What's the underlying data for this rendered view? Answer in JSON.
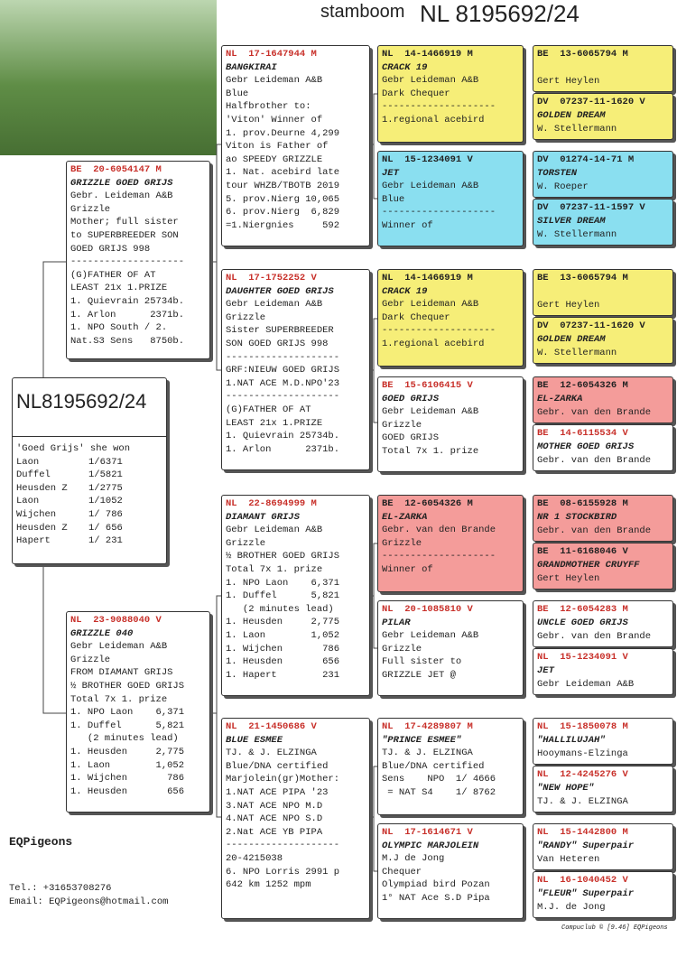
{
  "header": {
    "prefix": "stamboom",
    "title": "NL 8195692/24"
  },
  "subject": {
    "ring": "NL8195692/24",
    "intro": "'Goed Grijs' she won",
    "results": [
      [
        "Laon",
        "1/6371"
      ],
      [
        "Duffel",
        "1/5821"
      ],
      [
        "Heusden Z",
        "1/2775"
      ],
      [
        "Laon",
        "1/1052"
      ],
      [
        "Wijchen",
        "1/ 786"
      ],
      [
        "Heusden Z",
        "1/ 656"
      ],
      [
        "Hapert",
        "1/ 231"
      ]
    ]
  },
  "parents": [
    {
      "ring": "BE  20-6054147 M",
      "name": "GRIZZLE GOED GRIJS",
      "lines": [
        "Gebr. Leideman A&B",
        "Grizzle",
        "Mother; full sister",
        "to SUPERBREEDER SON",
        "GOED GRIJS 998",
        "--------------------",
        "(G)FATHER OF AT",
        "LEAST 21x 1.PRIZE",
        "1. Quievrain 25734b.",
        "1. Arlon      2371b.",
        "1. NPO South / 2.",
        "Nat.S3 Sens   8750b."
      ]
    },
    {
      "ring": "NL  23-9088040 V",
      "name": "GRIZZLE 040",
      "lines": [
        "Gebr Leideman A&B",
        "Grizzle",
        "FROM DIAMANT GRIJS",
        "½ BROTHER GOED GRIJS",
        "Total 7x 1. prize",
        "1. NPO Laon    6,371",
        "1. Duffel      5,821",
        "   (2 minutes lead)",
        "1. Heusden     2,775",
        "1. Laon        1,052",
        "1. Wijchen       786",
        "1. Heusden       656"
      ]
    }
  ],
  "grandparents": [
    {
      "ring": "NL  17-1647944 M",
      "name": "BANGKIRAI",
      "lines": [
        "Gebr Leideman A&B",
        "Blue",
        "Halfbrother to:",
        "'Viton' Winner of",
        "1. prov.Deurne 4,299",
        "Viton is Father of",
        "ao SPEEDY GRIZZLE",
        "1. Nat. acebird late",
        "tour WHZB/TBOTB 2019",
        "5. prov.Nierg 10,065",
        "6. prov.Nierg  6,829",
        "=1.Niergnies     592"
      ]
    },
    {
      "ring": "NL  17-1752252 V",
      "name": "DAUGHTER GOED GRIJS",
      "lines": [
        "Gebr Leideman A&B",
        "Grizzle",
        "Sister SUPERBREEDER",
        "SON GOED GRIJS 998",
        "--------------------",
        "GRF:NIEUW GOED GRIJS",
        "1.NAT ACE M.D.NPO'23",
        "--------------------",
        "(G)FATHER OF AT",
        "LEAST 21x 1.PRIZE",
        "1. Quievrain 25734b.",
        "1. Arlon      2371b."
      ]
    },
    {
      "ring": "NL  22-8694999 M",
      "name": "DIAMANT GRIJS",
      "lines": [
        "Gebr Leideman A&B",
        "Grizzle",
        "½ BROTHER GOED GRIJS",
        "Total 7x 1. prize",
        "1. NPO Laon    6,371",
        "1. Duffel      5,821",
        "   (2 minutes lead)",
        "1. Heusden     2,775",
        "1. Laon        1,052",
        "1. Wijchen       786",
        "1. Heusden       656",
        "1. Hapert        231"
      ]
    },
    {
      "ring": "NL  21-1450686 V",
      "name": "BLUE ESMEE",
      "lines": [
        "TJ. & J. ELZINGA",
        "Blue/DNA certified",
        "Marjolein(gr)Mother:",
        "1.NAT ACE PIPA '23",
        "3.NAT ACE NPO M.D",
        "4.NAT ACE NPO S.D",
        "2.Nat ACE YB PIPA",
        "--------------------",
        "20-4215038",
        "6. NPO Lorris 2991 p",
        "642 km 1252 mpm"
      ]
    }
  ],
  "great_grandparents": [
    {
      "ring": "NL  14-1466919 M",
      "name": "CRACK 19",
      "lines": [
        "Gebr Leideman A&B",
        "Dark Chequer",
        "--------------------",
        "1.regional acebird"
      ]
    },
    {
      "ring": "NL  15-1234091 V",
      "name": "JET",
      "lines": [
        "Gebr Leideman A&B",
        "Blue",
        "--------------------",
        "Winner of"
      ]
    },
    {
      "ring": "NL  14-1466919 M",
      "name": "CRACK 19",
      "lines": [
        "Gebr Leideman A&B",
        "Dark Chequer",
        "--------------------",
        "1.regional acebird"
      ]
    },
    {
      "ring": "BE  15-6106415 V",
      "name": "GOED GRIJS",
      "lines": [
        "Gebr Leideman A&B",
        "Grizzle",
        "GOED GRIJS",
        "Total 7x 1. prize"
      ]
    },
    {
      "ring": "BE  12-6054326 M",
      "name": "EL-ZARKA",
      "lines": [
        "Gebr. van den Brande",
        "Grizzle",
        "--------------------",
        "Winner of"
      ]
    },
    {
      "ring": "NL  20-1085810 V",
      "name": "PILAR",
      "lines": [
        "Gebr Leideman A&B",
        "Grizzle",
        "Full sister to",
        "GRIZZLE JET @"
      ]
    },
    {
      "ring": "NL  17-4289807 M",
      "name": "\"PRINCE ESMEE\"",
      "lines": [
        "TJ. & J. ELZINGA",
        "Blue/DNA certified",
        "Sens    NPO  1/ 4666",
        " = NAT S4    1/ 8762"
      ]
    },
    {
      "ring": "NL  17-1614671 V",
      "name": "OLYMPIC MARJOLEIN",
      "lines": [
        "M.J de Jong",
        "Chequer",
        "Olympiad bird Pozan",
        "1° NAT Ace S.D Pipa"
      ]
    }
  ],
  "great_great_grandparents": [
    {
      "ring": "BE  13-6065794 M",
      "lines": [
        "Gert Heylen"
      ]
    },
    {
      "ring": "DV  07237-11-1620 V",
      "name": "GOLDEN DREAM",
      "lines": [
        "W. Stellermann"
      ]
    },
    {
      "ring": "DV  01274-14-71 M",
      "name": "TORSTEN",
      "lines": [
        "W. Roeper"
      ]
    },
    {
      "ring": "DV  07237-11-1597 V",
      "name": "SILVER DREAM",
      "lines": [
        "W. Stellermann"
      ]
    },
    {
      "ring": "BE  13-6065794 M",
      "lines": [
        "Gert Heylen"
      ]
    },
    {
      "ring": "DV  07237-11-1620 V",
      "name": "GOLDEN DREAM",
      "lines": [
        "W. Stellermann"
      ]
    },
    {
      "ring": "BE  12-6054326 M",
      "name": "EL-ZARKA",
      "lines": [
        "Gebr. van den Brande"
      ]
    },
    {
      "ring": "BE  14-6115534 V",
      "name": "MOTHER GOED GRIJS",
      "lines": [
        "Gebr. van den Brande"
      ]
    },
    {
      "ring": "BE  08-6155928 M",
      "name": "NR 1 STOCKBIRD",
      "lines": [
        "Gebr. van den Brande"
      ]
    },
    {
      "ring": "BE  11-6168046 V",
      "name": "GRANDMOTHER CRUYFF",
      "lines": [
        "Gert Heylen"
      ]
    },
    {
      "ring": "BE  12-6054283 M",
      "name": "UNCLE GOED GRIJS",
      "lines": [
        "Gebr. van den Brande"
      ]
    },
    {
      "ring": "NL  15-1234091 V",
      "name": "JET",
      "lines": [
        "Gebr Leideman A&B"
      ]
    },
    {
      "ring": "NL  15-1850078 M",
      "name": "\"HALLILUJAH\"",
      "lines": [
        "Hooymans-Elzinga"
      ]
    },
    {
      "ring": "NL  12-4245276 V",
      "name": "\"NEW HOPE\"",
      "lines": [
        "TJ. & J. ELZINGA"
      ]
    },
    {
      "ring": "NL  15-1442800 M",
      "name": "\"RANDY\" Superpair",
      "lines": [
        "Van Heteren"
      ]
    },
    {
      "ring": "NL  16-1040452 V",
      "name": "\"FLEUR\" Superpair",
      "lines": [
        "M.J. de Jong"
      ]
    }
  ],
  "footer": {
    "brand": "EQPigeons",
    "phone": "Tel.: +31653708276",
    "email": "Email: EQPigeons@hotmail.com",
    "credit": "Compuclub © [9.46]  EQPigeons"
  }
}
